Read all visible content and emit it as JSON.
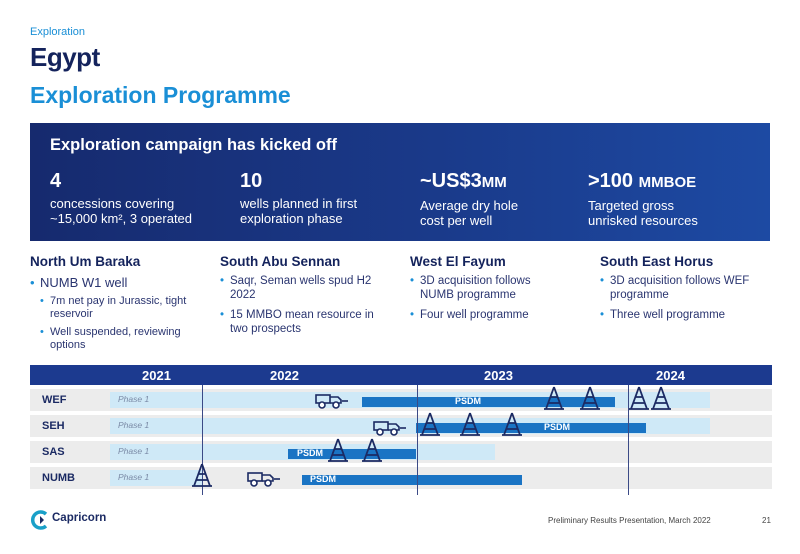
{
  "header": {
    "eyebrow": "Exploration",
    "title": "Egypt",
    "subtitle": "Exploration Programme"
  },
  "banner": {
    "heading": "Exploration campaign has kicked off",
    "stats": [
      {
        "value": "4",
        "desc_line1": "concessions covering",
        "desc_line2": "~15,000 km², 3 operated"
      },
      {
        "value": "10",
        "desc_line1": "wells planned in first",
        "desc_line2": "exploration phase"
      },
      {
        "value": "~US$3",
        "unit": "MM",
        "desc_line1": "Average dry hole",
        "desc_line2": "cost per well"
      },
      {
        "value": ">100",
        "unit": "MMBOE",
        "desc_line1": "Targeted gross",
        "desc_line2": "unrisked resources"
      }
    ]
  },
  "columns": [
    {
      "title": "North Um Baraka",
      "bullet1": "NUMB W1 well",
      "sub1": "7m net pay in Jurassic, tight reservoir",
      "sub2": "Well suspended, reviewing options"
    },
    {
      "title": "South Abu Sennan",
      "bullet1": "Saqr, Seman wells spud H2 2022",
      "bullet2": "15 MMBO mean resource in two prospects"
    },
    {
      "title": "West El Fayum",
      "bullet1": "3D acquisition follows NUMB programme",
      "bullet2": "Four well programme"
    },
    {
      "title": "South East Horus",
      "bullet1": "3D acquisition follows WEF programme",
      "bullet2": "Three well programme"
    }
  ],
  "timeline": {
    "years": [
      "2021",
      "2022",
      "2023",
      "2024"
    ],
    "phase_label": "Phase 1",
    "psdm_label": "PSDM",
    "rows": [
      "WEF",
      "SEH",
      "SAS",
      "NUMB"
    ]
  },
  "icons": {
    "rig": "drilling-rig-icon",
    "seismic": "seismic-truck-icon"
  },
  "colors": {
    "navy": "#14235c",
    "accent_blue": "#1a8fd6",
    "phase_fill": "#cfe9f7",
    "psdm_fill": "#1a74c4",
    "banner": "#1a3a8a"
  },
  "footer": {
    "brand": "Capricorn",
    "text": "Preliminary Results Presentation, March 2022",
    "page": "21"
  }
}
